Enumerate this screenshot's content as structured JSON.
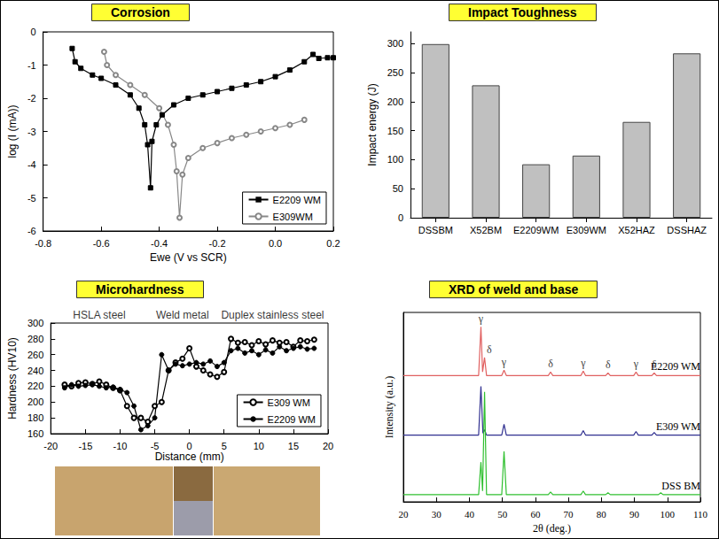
{
  "chart_data": [
    {
      "type": "line",
      "title": "Corrosion",
      "x_label": "Ewe (V vs SCR)",
      "y_label": "log (I (mA))",
      "xlim": [
        -0.8,
        0.2
      ],
      "xticks": [
        -0.8,
        -0.6,
        -0.4,
        -0.2,
        {
          "value": 0,
          "label": "0.0"
        },
        0.2
      ],
      "ylim": [
        -6,
        0
      ],
      "yticks": [
        -6,
        -5,
        -4,
        -3,
        -2,
        -1,
        0
      ],
      "grid": false,
      "legend": "lower right",
      "series": [
        {
          "name": "E2209 WM",
          "color": "#000000",
          "marker": "square",
          "line_style": "solid",
          "x": [
            -0.7,
            -0.69,
            -0.67,
            -0.63,
            -0.6,
            -0.55,
            -0.5,
            -0.47,
            -0.45,
            -0.44,
            -0.43,
            -0.425,
            -0.41,
            -0.39,
            -0.35,
            -0.3,
            -0.25,
            -0.2,
            -0.15,
            -0.1,
            -0.05,
            0,
            0.05,
            0.1,
            0.13,
            0.15,
            0.18,
            0.2
          ],
          "values": [
            -0.5,
            -0.9,
            -1.1,
            -1.3,
            -1.4,
            -1.6,
            -1.9,
            -2.3,
            -2.8,
            -3.4,
            -4.7,
            -3.3,
            -2.8,
            -2.5,
            -2.2,
            -2.0,
            -1.9,
            -1.8,
            -1.7,
            -1.6,
            -1.5,
            -1.35,
            -1.15,
            -0.9,
            -0.68,
            -0.8,
            -0.78,
            -0.78
          ]
        },
        {
          "name": "E309WM",
          "color": "#888888",
          "marker": "circle-open",
          "line_style": "solid",
          "x": [
            -0.59,
            -0.58,
            -0.55,
            -0.5,
            -0.45,
            -0.4,
            -0.37,
            -0.35,
            -0.34,
            -0.33,
            -0.32,
            -0.3,
            -0.25,
            -0.2,
            -0.15,
            -0.1,
            -0.05,
            0,
            0.05,
            0.1
          ],
          "values": [
            -0.6,
            -1.0,
            -1.3,
            -1.6,
            -1.9,
            -2.3,
            -2.8,
            -3.4,
            -4.2,
            -5.6,
            -4.3,
            -3.8,
            -3.5,
            -3.35,
            -3.2,
            -3.1,
            -3.0,
            -2.9,
            -2.8,
            -2.65
          ]
        }
      ]
    },
    {
      "type": "bar",
      "title": "Impact Toughness",
      "y_label": "Impact energy (J)",
      "categories": [
        "DSSBM",
        "X52BM",
        "E2209WM",
        "E309WM",
        "X52HAZ",
        "DSSHAZ"
      ],
      "values": [
        299,
        228,
        92,
        107,
        165,
        283
      ],
      "color": "#c0c0c0",
      "ylim": [
        0,
        320
      ],
      "yticks": [
        0,
        50,
        100,
        150,
        200,
        250,
        300
      ],
      "grid": false
    },
    {
      "type": "line",
      "title": "Microhardness",
      "x_label": "Distance (mm)",
      "y_label": "Hardness (HV10)",
      "xlim": [
        -20,
        20
      ],
      "xticks": [
        -20,
        -15,
        -10,
        -5,
        0,
        5,
        10,
        15,
        20
      ],
      "ylim": [
        160,
        300
      ],
      "yticks": [
        160,
        180,
        200,
        220,
        240,
        260,
        280,
        300
      ],
      "grid": false,
      "legend": "lower right",
      "annotations": [
        {
          "text": "HSLA steel",
          "x": -13
        },
        {
          "text": "Weld metal",
          "x": -1
        },
        {
          "text": "Duplex stainless steel",
          "x": 12
        }
      ],
      "series": [
        {
          "name": "E309 WM",
          "color": "#000000",
          "marker": "circle-open",
          "line_style": "solid",
          "x": [
            -18,
            -17,
            -16,
            -15,
            -14,
            -13,
            -12,
            -11,
            -10,
            -9,
            -8,
            -7,
            -6,
            -5,
            -4,
            -3,
            -2,
            -1,
            0,
            1,
            2,
            3,
            4,
            5,
            6,
            7,
            8,
            9,
            10,
            11,
            12,
            13,
            14,
            15,
            16,
            17,
            18
          ],
          "values": [
            222,
            220,
            224,
            225,
            223,
            226,
            222,
            218,
            215,
            195,
            180,
            180,
            175,
            195,
            200,
            240,
            250,
            255,
            268,
            245,
            240,
            235,
            232,
            238,
            280,
            275,
            276,
            272,
            277,
            273,
            278,
            275,
            276,
            270,
            278,
            277,
            279
          ]
        },
        {
          "name": "E2209 WM",
          "color": "#000000",
          "marker": "circle",
          "line_style": "solid",
          "x": [
            -18,
            -17,
            -16,
            -15,
            -14,
            -13,
            -12,
            -11,
            -10,
            -9,
            -8,
            -7,
            -6,
            -5,
            -4,
            -3,
            -2,
            -1,
            0,
            1,
            2,
            3,
            4,
            5,
            6,
            7,
            8,
            9,
            10,
            11,
            12,
            13,
            14,
            15,
            16,
            17,
            18
          ],
          "values": [
            218,
            222,
            220,
            221,
            222,
            220,
            218,
            219,
            216,
            212,
            195,
            165,
            170,
            180,
            260,
            240,
            248,
            246,
            248,
            250,
            248,
            252,
            245,
            250,
            265,
            268,
            262,
            265,
            260,
            266,
            262,
            270,
            265,
            268,
            270,
            267,
            268
          ]
        }
      ]
    },
    {
      "type": "line",
      "title": "XRD of weld and base",
      "x_label": "2θ (deg.)",
      "y_label": "Intensity (a.u.)",
      "xlim": [
        20,
        110
      ],
      "xticks": [
        20,
        30,
        40,
        50,
        60,
        70,
        80,
        90,
        100,
        110
      ],
      "ylim": [
        0,
        105
      ],
      "grid": false,
      "tick_labels": "x",
      "annotations": [
        {
          "text": "γ",
          "x": 43.5,
          "y": 97
        },
        {
          "text": "δ",
          "x": 46,
          "y": 80
        },
        {
          "text": "γ",
          "x": 50.5,
          "y": 73
        },
        {
          "text": "δ",
          "x": 64.6,
          "y": 72
        },
        {
          "text": "γ",
          "x": 74.5,
          "y": 72.5
        },
        {
          "text": "δ",
          "x": 82,
          "y": 71.5
        },
        {
          "text": "γ",
          "x": 90.5,
          "y": 72
        },
        {
          "text": "δ",
          "x": 96,
          "y": 71.5
        }
      ],
      "series": [
        {
          "name": "E2209 WM",
          "color": "#e06060",
          "marker": "none",
          "line_style": "solid",
          "x": [
            20,
            30,
            42.8,
            43.5,
            44.0,
            44.6,
            45.2,
            49.8,
            50.5,
            51.2,
            63.9,
            64.6,
            65.3,
            73.8,
            74.5,
            75.2,
            81.3,
            82,
            82.7,
            89.8,
            90.5,
            91.2,
            95.3,
            96,
            96.7,
            110
          ],
          "values": [
            70,
            70,
            70,
            97,
            72,
            80,
            70,
            70,
            73,
            70,
            70,
            72,
            70,
            70,
            72.5,
            70,
            70,
            71.5,
            70,
            70,
            72,
            70,
            70,
            71.5,
            70,
            70
          ]
        },
        {
          "name": "E309 WM",
          "color": "#303090",
          "marker": "none",
          "line_style": "solid",
          "x": [
            20,
            42.8,
            43.5,
            44.1,
            44.6,
            45.2,
            49.8,
            50.5,
            51.2,
            73.8,
            74.5,
            75.2,
            89.8,
            90.5,
            91.2,
            95.3,
            96,
            96.7,
            110
          ],
          "values": [
            37,
            37,
            64,
            38,
            40,
            37,
            37,
            43,
            37,
            37,
            39.5,
            37,
            37,
            39,
            37,
            37,
            38.5,
            37,
            37
          ]
        },
        {
          "name": "DSS BM",
          "color": "#30c030",
          "marker": "none",
          "line_style": "solid",
          "x": [
            20,
            42.8,
            43.5,
            44.0,
            44.6,
            45.2,
            49.8,
            50.5,
            51.2,
            63.9,
            64.6,
            65.3,
            73.8,
            74.5,
            75.2,
            81.3,
            82,
            82.7,
            97.3,
            98,
            98.7,
            110
          ],
          "values": [
            4,
            4,
            22,
            6,
            61,
            4,
            4,
            28,
            4,
            4,
            5.5,
            4,
            4,
            6,
            4,
            4,
            5,
            4,
            4,
            5,
            4,
            4
          ]
        }
      ]
    }
  ]
}
